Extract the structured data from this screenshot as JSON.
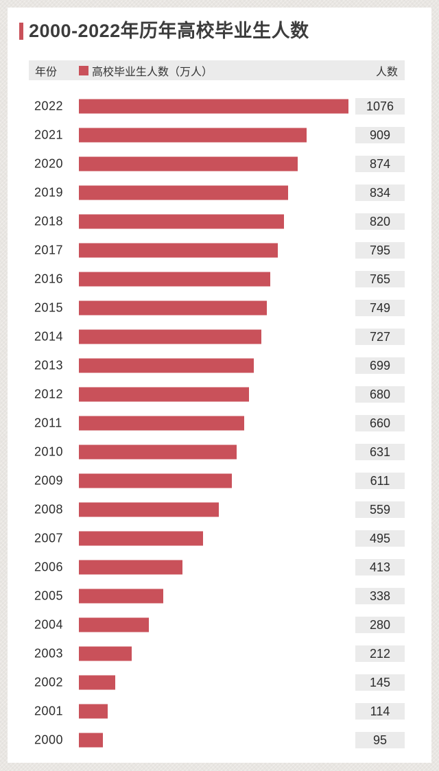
{
  "page": {
    "background_color": "#e9e6e2",
    "card_background": "#ffffff"
  },
  "header": {
    "title": "2000-2022年历年高校毕业生人数",
    "accent_color": "#c9515a"
  },
  "table_header": {
    "year_col": "年份",
    "legend_label": "高校毕业生人数（万人）",
    "count_col": "人数",
    "legend_color": "#c9515a",
    "background": "#ebebeb"
  },
  "chart_data": {
    "type": "bar",
    "orientation": "horizontal",
    "title": "2000-2022年历年高校毕业生人数",
    "unit": "万人",
    "categories": [
      "2022",
      "2021",
      "2020",
      "2019",
      "2018",
      "2017",
      "2016",
      "2015",
      "2014",
      "2013",
      "2012",
      "2011",
      "2010",
      "2009",
      "2008",
      "2007",
      "2006",
      "2005",
      "2004",
      "2003",
      "2002",
      "2001",
      "2000"
    ],
    "values": [
      1076,
      909,
      874,
      834,
      820,
      795,
      765,
      749,
      727,
      699,
      680,
      660,
      631,
      611,
      559,
      495,
      413,
      338,
      280,
      212,
      145,
      114,
      95
    ],
    "xlim": [
      0,
      1076
    ],
    "bar_color": "#c9515a",
    "value_label_background": "#ebebeb",
    "value_labels_shown": true,
    "legend_position": "top",
    "grid": false
  }
}
